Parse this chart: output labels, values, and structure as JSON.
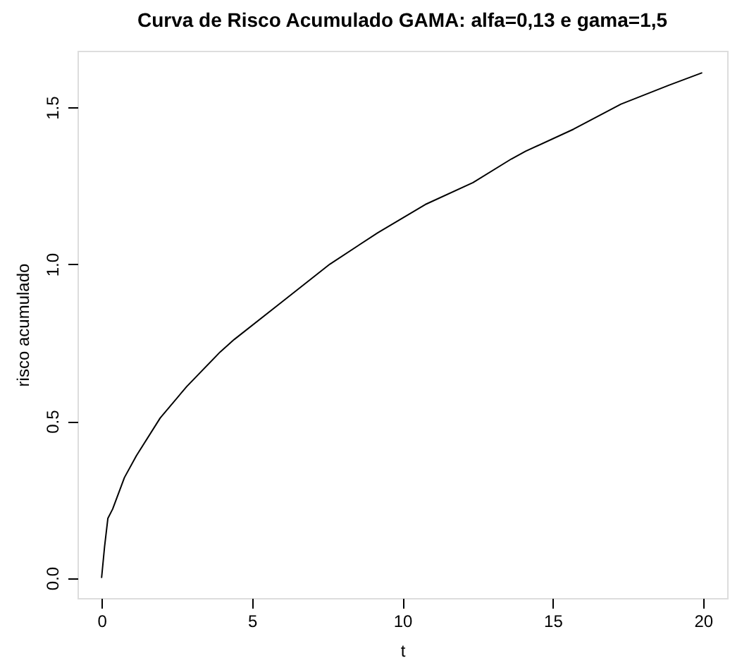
{
  "chart_data": {
    "type": "line",
    "title": "Curva de Risco Acumulado GAMA: alfa=0,13 e gama=1,5",
    "xlabel": "t",
    "ylabel": "risco acumulado",
    "x": [
      0,
      0.1,
      0.21,
      0.37,
      0.76,
      1.16,
      1.95,
      2.83,
      3.94,
      4.41,
      6.0,
      7.59,
      9.18,
      10.76,
      12.35,
      13.62,
      14.1,
      15.69,
      17.27,
      18.86,
      19.97
    ],
    "series": [
      {
        "color": "#000000",
        "values": [
          0,
          0.1,
          0.19,
          0.22,
          0.32,
          0.39,
          0.51,
          0.61,
          0.72,
          0.76,
          0.88,
          1.0,
          1.1,
          1.19,
          1.26,
          1.335,
          1.36,
          1.43,
          1.51,
          1.57,
          1.61
        ]
      }
    ],
    "xlim": [
      -0.8,
      20.8
    ],
    "ylim": [
      -0.064,
      1.68
    ],
    "xticks": [
      0,
      5,
      10,
      15,
      20
    ],
    "yticks": [
      {
        "value": 0,
        "label": "0.0"
      },
      {
        "value": 0.5,
        "label": "0.5"
      },
      {
        "value": 1,
        "label": "1.0"
      },
      {
        "value": 1.5,
        "label": "1.5"
      }
    ],
    "grid": false,
    "marker": "none",
    "line_style": "solid"
  }
}
